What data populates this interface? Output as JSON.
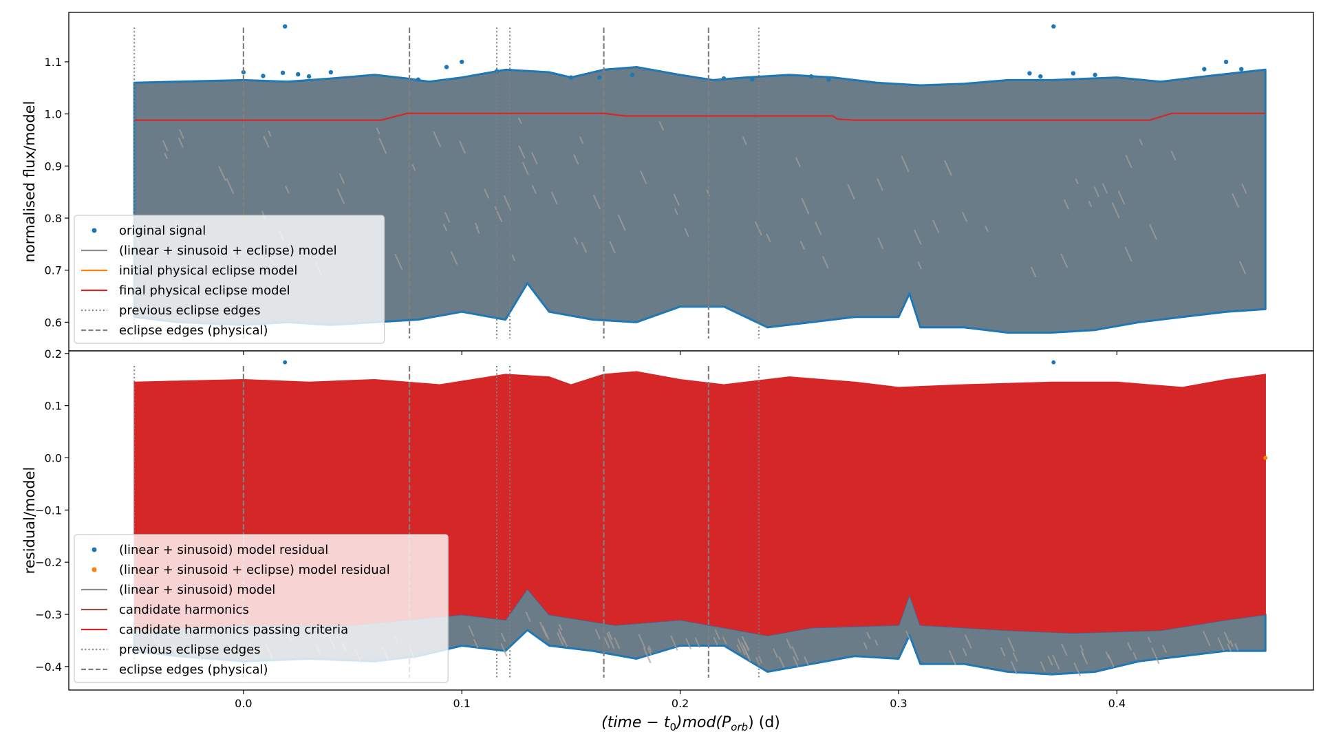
{
  "figure": {
    "xlabel": "(time − t₀) mod(P_orb) (d)"
  },
  "colors": {
    "original": "#1f77b4",
    "original_fill": "#6b7c89",
    "texture": "#a89e9a",
    "residual_fill": "#d62728",
    "final_model": "#d62728",
    "initial_model": "#ff7f0e",
    "model_grey": "#8c8c8c",
    "harmonics": "#8c564b",
    "edge_grey": "#7f7f7f"
  },
  "chart_data": [
    {
      "type": "scatter",
      "panel": "top",
      "ylabel": "normalised flux/model",
      "xlim": [
        -0.08,
        0.49
      ],
      "ylim": [
        0.545,
        1.195
      ],
      "xticks": [
        0.0,
        0.1,
        0.2,
        0.3,
        0.4
      ],
      "xtick_labels": [
        "0.0",
        "0.1",
        "0.2",
        "0.3",
        "0.4"
      ],
      "yticks": [
        0.6,
        0.7,
        0.8,
        0.9,
        1.0,
        1.1
      ],
      "ytick_labels": [
        "0.6",
        "0.7",
        "0.8",
        "0.9",
        "1.0",
        "1.1"
      ],
      "legend_placement": "lower-left",
      "legend": [
        {
          "label": "original signal",
          "kind": "dot",
          "color": "#1f77b4"
        },
        {
          "label": "(linear + sinusoid + eclipse) model",
          "kind": "line",
          "color": "#8c8c8c"
        },
        {
          "label": "initial physical eclipse model",
          "kind": "line",
          "color": "#ff7f0e"
        },
        {
          "label": "final physical eclipse model",
          "kind": "line",
          "color": "#d62728"
        },
        {
          "label": "previous eclipse edges",
          "kind": "dotted",
          "color": "#7f7f7f"
        },
        {
          "label": "eclipse edges (physical)",
          "kind": "dashed",
          "color": "#7f7f7f"
        }
      ],
      "envelope_upper": [
        [
          -0.05,
          1.06
        ],
        [
          -0.03,
          1.062
        ],
        [
          0.0,
          1.065
        ],
        [
          0.02,
          1.062
        ],
        [
          0.04,
          1.068
        ],
        [
          0.06,
          1.075
        ],
        [
          0.075,
          1.068
        ],
        [
          0.085,
          1.062
        ],
        [
          0.1,
          1.07
        ],
        [
          0.12,
          1.085
        ],
        [
          0.14,
          1.08
        ],
        [
          0.15,
          1.07
        ],
        [
          0.165,
          1.085
        ],
        [
          0.18,
          1.09
        ],
        [
          0.2,
          1.075
        ],
        [
          0.215,
          1.065
        ],
        [
          0.23,
          1.07
        ],
        [
          0.25,
          1.075
        ],
        [
          0.27,
          1.07
        ],
        [
          0.29,
          1.06
        ],
        [
          0.31,
          1.055
        ],
        [
          0.33,
          1.058
        ],
        [
          0.35,
          1.065
        ],
        [
          0.37,
          1.065
        ],
        [
          0.4,
          1.07
        ],
        [
          0.42,
          1.062
        ],
        [
          0.44,
          1.072
        ],
        [
          0.468,
          1.085
        ]
      ],
      "envelope_lower": [
        [
          -0.05,
          0.61
        ],
        [
          -0.03,
          0.6
        ],
        [
          0.0,
          0.595
        ],
        [
          0.02,
          0.6
        ],
        [
          0.04,
          0.595
        ],
        [
          0.06,
          0.6
        ],
        [
          0.08,
          0.605
        ],
        [
          0.1,
          0.62
        ],
        [
          0.12,
          0.605
        ],
        [
          0.13,
          0.675
        ],
        [
          0.14,
          0.62
        ],
        [
          0.16,
          0.605
        ],
        [
          0.18,
          0.6
        ],
        [
          0.2,
          0.63
        ],
        [
          0.22,
          0.63
        ],
        [
          0.24,
          0.59
        ],
        [
          0.26,
          0.6
        ],
        [
          0.28,
          0.61
        ],
        [
          0.3,
          0.61
        ],
        [
          0.305,
          0.655
        ],
        [
          0.31,
          0.59
        ],
        [
          0.33,
          0.59
        ],
        [
          0.35,
          0.58
        ],
        [
          0.37,
          0.58
        ],
        [
          0.39,
          0.585
        ],
        [
          0.41,
          0.6
        ],
        [
          0.43,
          0.61
        ],
        [
          0.45,
          0.62
        ],
        [
          0.468,
          0.625
        ]
      ],
      "outliers": [
        [
          0.019,
          1.168
        ],
        [
          0.371,
          1.168
        ],
        [
          0.0,
          1.08
        ],
        [
          0.009,
          1.073
        ],
        [
          0.018,
          1.079
        ],
        [
          0.025,
          1.076
        ],
        [
          0.03,
          1.072
        ],
        [
          0.04,
          1.08
        ],
        [
          0.08,
          1.066
        ],
        [
          0.093,
          1.09
        ],
        [
          0.1,
          1.1
        ],
        [
          0.116,
          1.082
        ],
        [
          0.15,
          1.07
        ],
        [
          0.163,
          1.07
        ],
        [
          0.178,
          1.075
        ],
        [
          0.22,
          1.068
        ],
        [
          0.233,
          1.066
        ],
        [
          0.26,
          1.072
        ],
        [
          0.268,
          1.066
        ],
        [
          0.36,
          1.078
        ],
        [
          0.365,
          1.072
        ],
        [
          0.38,
          1.078
        ],
        [
          0.39,
          1.075
        ],
        [
          0.44,
          1.086
        ],
        [
          0.45,
          1.1
        ],
        [
          0.457,
          1.086
        ]
      ],
      "final_model": [
        [
          -0.05,
          0.988
        ],
        [
          0.063,
          0.988
        ],
        [
          0.075,
          1.001
        ],
        [
          0.165,
          1.001
        ],
        [
          0.175,
          0.996
        ],
        [
          0.27,
          0.996
        ],
        [
          0.272,
          0.99
        ],
        [
          0.28,
          0.988
        ],
        [
          0.415,
          0.988
        ],
        [
          0.425,
          1.001
        ],
        [
          0.468,
          1.001
        ]
      ],
      "previous_eclipse_edges": [
        -0.05,
        0.116,
        0.122,
        0.236
      ],
      "eclipse_edges_physical": [
        0.0,
        0.076,
        0.165,
        0.213
      ]
    },
    {
      "type": "scatter",
      "panel": "bottom",
      "ylabel": "residual/model",
      "xlim": [
        -0.08,
        0.49
      ],
      "ylim": [
        -0.445,
        0.205
      ],
      "xticks": [
        0.0,
        0.1,
        0.2,
        0.3,
        0.4
      ],
      "xtick_labels": [
        "0.0",
        "0.1",
        "0.2",
        "0.3",
        "0.4"
      ],
      "yticks": [
        -0.4,
        -0.3,
        -0.2,
        -0.1,
        0.0,
        0.1,
        0.2
      ],
      "ytick_labels": [
        "−0.4",
        "−0.3",
        "−0.2",
        "−0.1",
        "0.0",
        "0.1",
        "0.2"
      ],
      "legend_placement": "lower-left",
      "legend": [
        {
          "label": "(linear + sinusoid) model residual",
          "kind": "dot",
          "color": "#1f77b4"
        },
        {
          "label": "(linear + sinusoid + eclipse) model residual",
          "kind": "dot",
          "color": "#ff7f0e"
        },
        {
          "label": "(linear + sinusoid) model",
          "kind": "line",
          "color": "#8c8c8c"
        },
        {
          "label": "candidate harmonics",
          "kind": "line",
          "color": "#8c564b"
        },
        {
          "label": "candidate harmonics passing criteria",
          "kind": "line",
          "color": "#d62728"
        },
        {
          "label": "previous eclipse edges",
          "kind": "dotted",
          "color": "#7f7f7f"
        },
        {
          "label": "eclipse edges (physical)",
          "kind": "dashed",
          "color": "#7f7f7f"
        }
      ],
      "red_upper": [
        [
          -0.05,
          0.145
        ],
        [
          -0.02,
          0.148
        ],
        [
          0.0,
          0.15
        ],
        [
          0.03,
          0.145
        ],
        [
          0.06,
          0.15
        ],
        [
          0.075,
          0.145
        ],
        [
          0.09,
          0.14
        ],
        [
          0.12,
          0.16
        ],
        [
          0.14,
          0.155
        ],
        [
          0.15,
          0.14
        ],
        [
          0.165,
          0.16
        ],
        [
          0.18,
          0.165
        ],
        [
          0.2,
          0.15
        ],
        [
          0.22,
          0.14
        ],
        [
          0.25,
          0.155
        ],
        [
          0.28,
          0.145
        ],
        [
          0.3,
          0.135
        ],
        [
          0.33,
          0.14
        ],
        [
          0.37,
          0.145
        ],
        [
          0.4,
          0.145
        ],
        [
          0.43,
          0.135
        ],
        [
          0.45,
          0.15
        ],
        [
          0.468,
          0.16
        ]
      ],
      "red_lower": [
        [
          -0.05,
          -0.33
        ],
        [
          0.0,
          -0.32
        ],
        [
          0.05,
          -0.32
        ],
        [
          0.1,
          -0.3
        ],
        [
          0.12,
          -0.31
        ],
        [
          0.13,
          -0.25
        ],
        [
          0.14,
          -0.3
        ],
        [
          0.17,
          -0.32
        ],
        [
          0.2,
          -0.31
        ],
        [
          0.24,
          -0.34
        ],
        [
          0.26,
          -0.325
        ],
        [
          0.3,
          -0.32
        ],
        [
          0.305,
          -0.26
        ],
        [
          0.31,
          -0.32
        ],
        [
          0.35,
          -0.33
        ],
        [
          0.38,
          -0.335
        ],
        [
          0.42,
          -0.33
        ],
        [
          0.45,
          -0.31
        ],
        [
          0.468,
          -0.3
        ]
      ],
      "envelope_lower": [
        [
          -0.05,
          -0.37
        ],
        [
          -0.03,
          -0.38
        ],
        [
          0.0,
          -0.39
        ],
        [
          0.03,
          -0.385
        ],
        [
          0.06,
          -0.39
        ],
        [
          0.08,
          -0.38
        ],
        [
          0.1,
          -0.36
        ],
        [
          0.12,
          -0.37
        ],
        [
          0.13,
          -0.33
        ],
        [
          0.14,
          -0.36
        ],
        [
          0.16,
          -0.37
        ],
        [
          0.18,
          -0.385
        ],
        [
          0.2,
          -0.36
        ],
        [
          0.22,
          -0.36
        ],
        [
          0.24,
          -0.41
        ],
        [
          0.26,
          -0.395
        ],
        [
          0.28,
          -0.38
        ],
        [
          0.3,
          -0.385
        ],
        [
          0.305,
          -0.34
        ],
        [
          0.31,
          -0.395
        ],
        [
          0.33,
          -0.395
        ],
        [
          0.35,
          -0.41
        ],
        [
          0.37,
          -0.415
        ],
        [
          0.39,
          -0.41
        ],
        [
          0.41,
          -0.39
        ],
        [
          0.43,
          -0.38
        ],
        [
          0.45,
          -0.37
        ],
        [
          0.468,
          -0.37
        ]
      ],
      "outliers": [
        [
          0.019,
          0.183
        ],
        [
          0.371,
          0.183
        ]
      ],
      "previous_eclipse_edges": [
        -0.05,
        0.116,
        0.122,
        0.236
      ],
      "eclipse_edges_physical": [
        0.0,
        0.076,
        0.165,
        0.213
      ]
    }
  ]
}
